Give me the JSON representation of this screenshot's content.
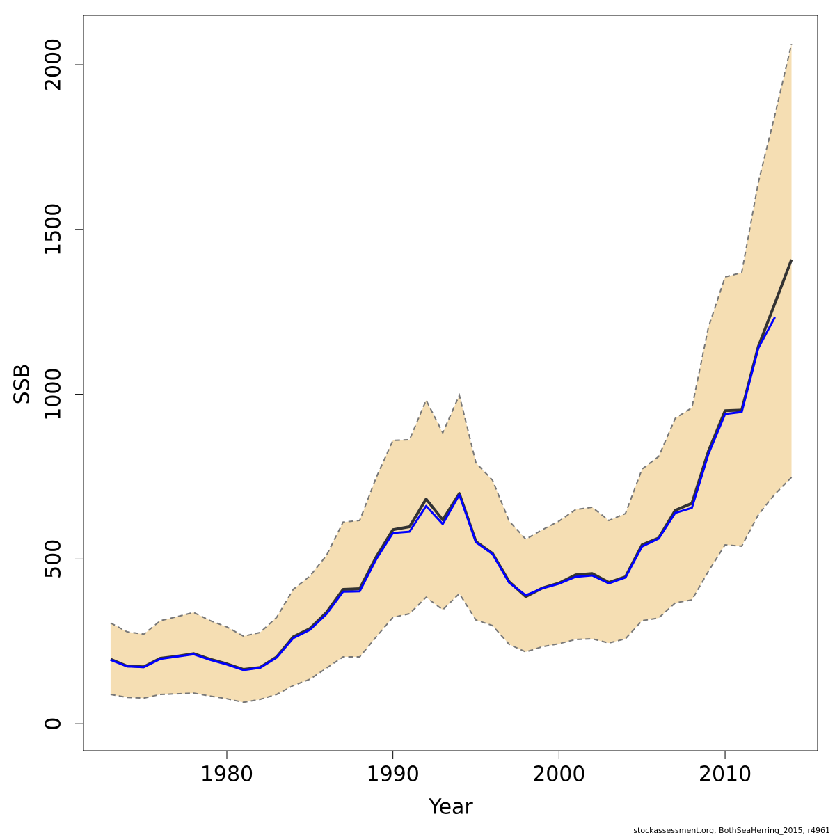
{
  "chart_data": {
    "type": "line",
    "x_label": "Year",
    "y_label": "SSB",
    "caption": "stockassessment.org, BothSeaHerring_2015, r4961",
    "x": [
      1973,
      1974,
      1975,
      1976,
      1977,
      1978,
      1979,
      1980,
      1981,
      1982,
      1983,
      1984,
      1985,
      1986,
      1987,
      1988,
      1989,
      1990,
      1991,
      1992,
      1993,
      1994,
      1995,
      1996,
      1997,
      1998,
      1999,
      2000,
      2001,
      2002,
      2003,
      2004,
      2005,
      2006,
      2007,
      2008,
      2009,
      2010,
      2011,
      2012,
      2013,
      2014
    ],
    "band": {
      "color": "#f5deb3",
      "edge_color": "#777777",
      "upper": [
        306,
        279,
        272,
        313,
        325,
        338,
        313,
        294,
        266,
        277,
        323,
        408,
        448,
        511,
        612,
        617,
        748,
        860,
        862,
        982,
        883,
        997,
        792,
        739,
        615,
        560,
        589,
        615,
        650,
        657,
        617,
        638,
        773,
        811,
        927,
        959,
        1204,
        1356,
        1369,
        1643,
        1848,
        2063
      ],
      "lower": [
        89,
        80,
        78,
        89,
        91,
        93,
        84,
        76,
        65,
        74,
        89,
        116,
        135,
        169,
        203,
        203,
        264,
        323,
        334,
        384,
        346,
        395,
        315,
        298,
        241,
        218,
        234,
        243,
        256,
        258,
        245,
        258,
        313,
        321,
        367,
        376,
        463,
        543,
        539,
        634,
        697,
        748
      ]
    },
    "series": [
      {
        "color": "#333333",
        "values": [
          196,
          175,
          173,
          199,
          205,
          213,
          196,
          182,
          165,
          171,
          203,
          264,
          289,
          338,
          408,
          410,
          507,
          589,
          598,
          682,
          619,
          699,
          553,
          517,
          431,
          386,
          412,
          427,
          452,
          456,
          429,
          446,
          543,
          564,
          648,
          669,
          828,
          950,
          952,
          1145,
          1276,
          1409
        ]
      },
      {
        "color": "#0000ff",
        "values": [
          194,
          174,
          172,
          197,
          204,
          211,
          194,
          180,
          163,
          170,
          201,
          260,
          285,
          333,
          401,
          402,
          500,
          579,
          583,
          661,
          606,
          695,
          551,
          515,
          428,
          390,
          411,
          425,
          446,
          450,
          426,
          444,
          538,
          562,
          640,
          655,
          819,
          940,
          946,
          1140,
          1234,
          null
        ]
      }
    ],
    "xlim": [
      1971.37,
      2015.57
    ],
    "ylim": [
      -82,
      2150
    ],
    "xticks": [
      1980,
      1990,
      2000,
      2010
    ],
    "yticks": [
      0,
      500,
      1000,
      1500,
      2000
    ]
  }
}
